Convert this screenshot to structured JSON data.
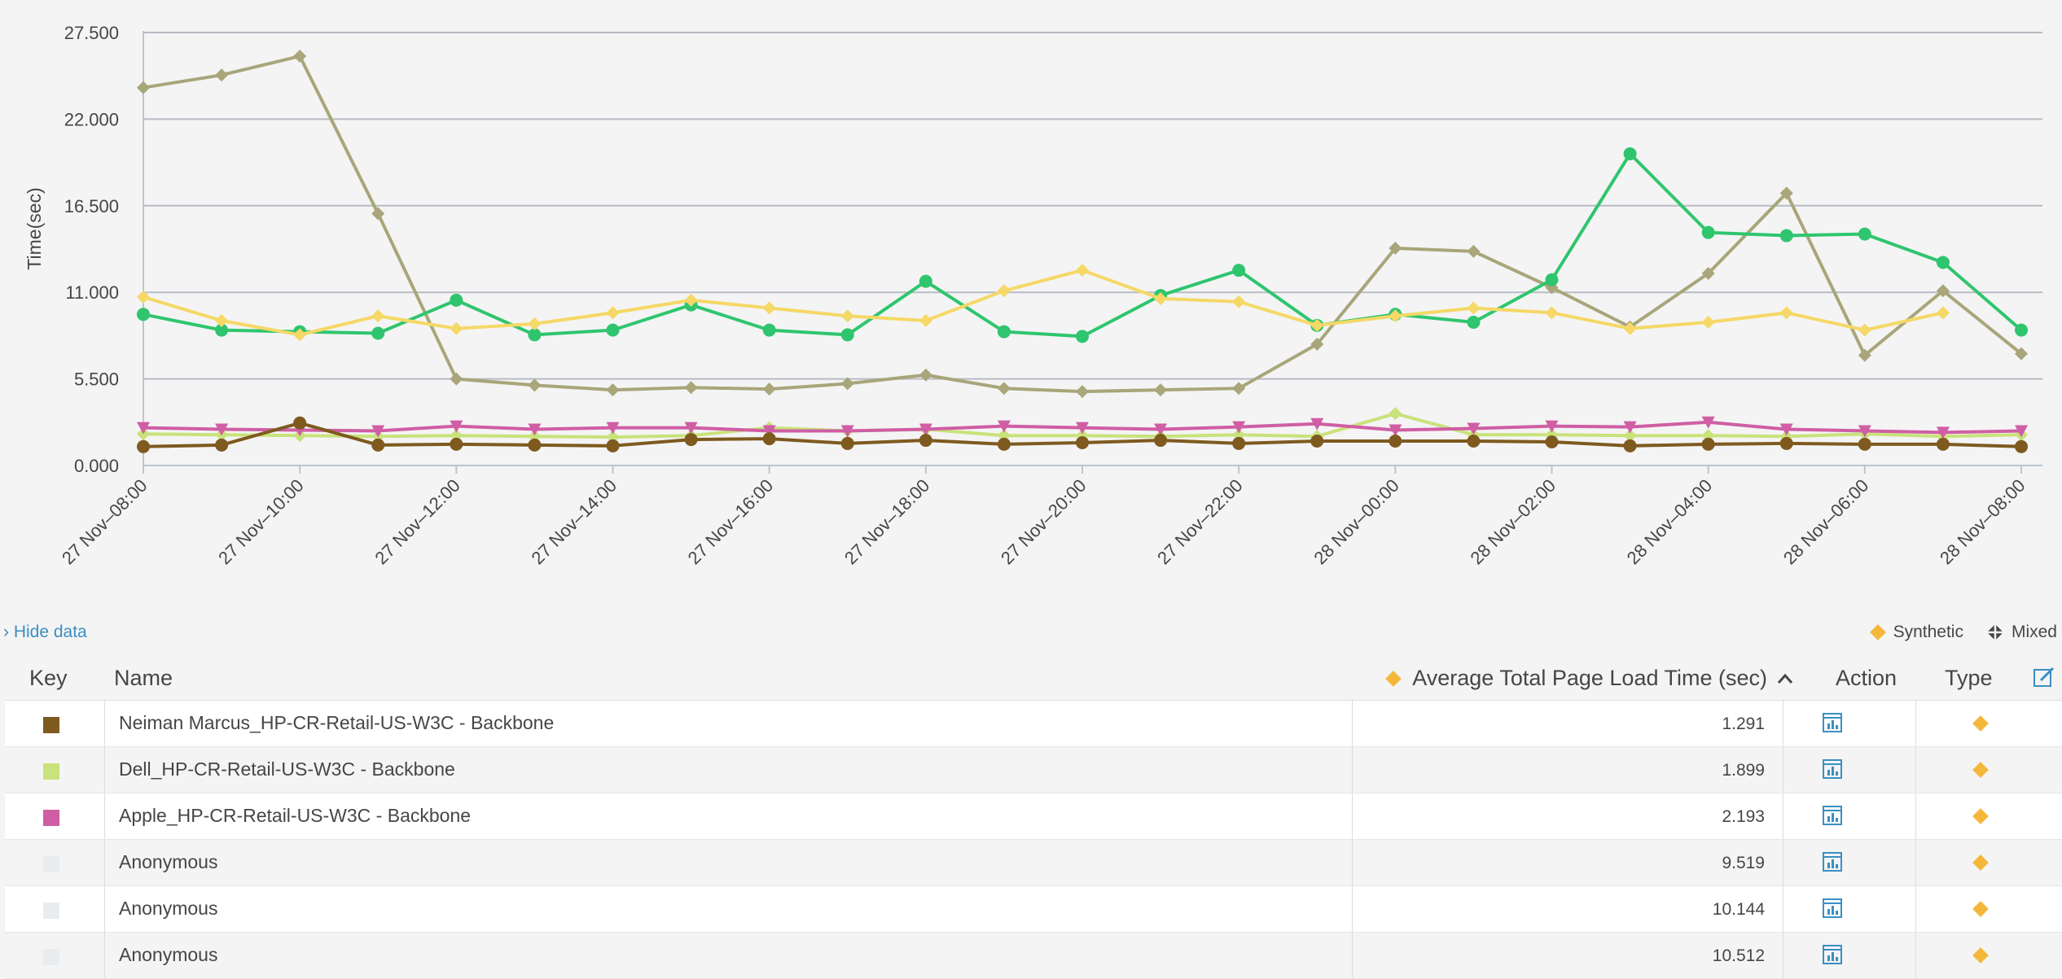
{
  "chart_data": {
    "type": "line",
    "ylabel": "Time(sec)",
    "ylim": [
      0,
      27500
    ],
    "y_ticks": [
      "0.000",
      "5.500",
      "11.000",
      "16.500",
      "22.000",
      "27.500"
    ],
    "y_tick_values": [
      0,
      5500,
      11000,
      16500,
      22000,
      27500
    ],
    "x_ticks": [
      "27 Nov–08:00",
      "27 Nov–10:00",
      "27 Nov–12:00",
      "27 Nov–14:00",
      "27 Nov–16:00",
      "27 Nov–18:00",
      "27 Nov–20:00",
      "27 Nov–22:00",
      "28 Nov–00:00",
      "28 Nov–02:00",
      "28 Nov–04:00",
      "28 Nov–06:00",
      "28 Nov–08:00"
    ],
    "x": [
      "27 Nov 08:00",
      "27 Nov 09:00",
      "27 Nov 10:00",
      "27 Nov 11:00",
      "27 Nov 12:00",
      "27 Nov 13:00",
      "27 Nov 14:00",
      "27 Nov 15:00",
      "27 Nov 16:00",
      "27 Nov 17:00",
      "27 Nov 18:00",
      "27 Nov 19:00",
      "27 Nov 20:00",
      "27 Nov 21:00",
      "27 Nov 22:00",
      "27 Nov 23:00",
      "28 Nov 00:00",
      "28 Nov 01:00",
      "28 Nov 02:00",
      "28 Nov 03:00",
      "28 Nov 04:00",
      "28 Nov 05:00",
      "28 Nov 06:00",
      "28 Nov 07:00",
      "28 Nov 08:00"
    ],
    "grid": true,
    "series": [
      {
        "color": "#a8a67a",
        "marker": "diamond",
        "values": [
          24000,
          24800,
          26000,
          16000,
          5500,
          5100,
          4800,
          4950,
          4850,
          5200,
          5750,
          4900,
          4700,
          4800,
          4900,
          7700,
          13800,
          13600,
          11300,
          8800,
          12200,
          17300,
          7000,
          11100,
          7100
        ]
      },
      {
        "color": "#2fc56e",
        "marker": "circle",
        "values": [
          9600,
          8600,
          8500,
          8400,
          10500,
          8300,
          8600,
          10200,
          8600,
          8300,
          11700,
          8500,
          8200,
          10800,
          12400,
          8900,
          9600,
          9100,
          11800,
          19800,
          14800,
          14600,
          14700,
          12900,
          8600
        ]
      },
      {
        "color": "#f5d866",
        "marker": "diamond",
        "values": [
          10700,
          9200,
          8300,
          9500,
          8700,
          9000,
          9700,
          10500,
          10000,
          9500,
          9200,
          11100,
          12400,
          10600,
          10400,
          8900,
          9500,
          10000,
          9700,
          8700,
          9100,
          9700,
          8600,
          9700,
          null
        ]
      },
      {
        "color": "#c9e27b",
        "marker": "diamond",
        "values": [
          2000,
          1950,
          1900,
          1850,
          1900,
          1850,
          1800,
          1900,
          2400,
          2200,
          2300,
          1900,
          1900,
          1850,
          1950,
          1850,
          3300,
          1950,
          1950,
          1900,
          1900,
          1850,
          2000,
          1850,
          1950
        ]
      },
      {
        "color": "#cf5ea4",
        "marker": "triangle-down",
        "values": [
          2400,
          2300,
          2250,
          2200,
          2500,
          2300,
          2400,
          2400,
          2200,
          2200,
          2300,
          2500,
          2400,
          2300,
          2450,
          2650,
          2250,
          2350,
          2500,
          2450,
          2750,
          2300,
          2200,
          2100,
          2200
        ]
      },
      {
        "color": "#7e5a1f",
        "marker": "circle",
        "values": [
          1200,
          1300,
          2700,
          1300,
          1350,
          1300,
          1250,
          1650,
          1700,
          1400,
          1600,
          1350,
          1450,
          1600,
          1400,
          1550,
          1550,
          1550,
          1500,
          1250,
          1350,
          1400,
          1350,
          1350,
          1200
        ]
      }
    ]
  },
  "controls": {
    "hide_data": "› Hide data",
    "legend_synthetic": "Synthetic",
    "legend_mixed": "Mixed",
    "accent_color": "#3a8fc2",
    "synthetic_color": "#f5b73b"
  },
  "table": {
    "headers": {
      "key": "Key",
      "name": "Name",
      "metric": "Average Total Page Load Time (sec)",
      "action": "Action",
      "type": "Type"
    },
    "rows": [
      {
        "color": "#7e5a1f",
        "name": "Neiman Marcus_HP-CR-Retail-US-W3C - Backbone",
        "value": "1.291",
        "action_icon": "chart-icon",
        "type_icon": "synthetic-diamond-icon"
      },
      {
        "color": "#c9e27b",
        "name": "Dell_HP-CR-Retail-US-W3C - Backbone",
        "value": "1.899",
        "action_icon": "chart-icon",
        "type_icon": "synthetic-diamond-icon"
      },
      {
        "color": "#cf5ea4",
        "name": "Apple_HP-CR-Retail-US-W3C - Backbone",
        "value": "2.193",
        "action_icon": "chart-icon",
        "type_icon": "synthetic-diamond-icon"
      },
      {
        "color": "#e9ecef",
        "name": "Anonymous",
        "value": "9.519",
        "action_icon": "chart-icon",
        "type_icon": "synthetic-diamond-icon"
      },
      {
        "color": "#e9ecef",
        "name": "Anonymous",
        "value": "10.144",
        "action_icon": "chart-icon",
        "type_icon": "synthetic-diamond-icon"
      },
      {
        "color": "#e9ecef",
        "name": "Anonymous",
        "value": "10.512",
        "action_icon": "chart-icon",
        "type_icon": "synthetic-diamond-icon"
      }
    ]
  }
}
